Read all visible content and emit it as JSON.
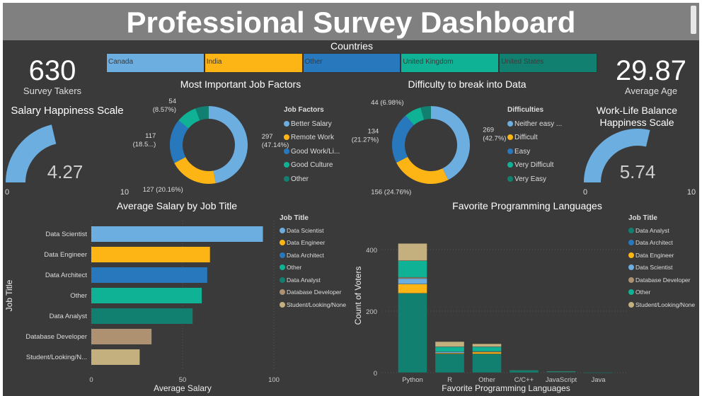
{
  "title": "Professional Survey Dashboard",
  "colors": {
    "c1": "#6caee0",
    "c2": "#fdb515",
    "c3": "#2878bd",
    "c4": "#0fb294",
    "c5": "#128070",
    "c6": "#ad9170",
    "c7": "#c4b07e"
  },
  "countries": {
    "title": "Countries",
    "items": [
      "Canada",
      "India",
      "Other",
      "United Kingdom",
      "United States"
    ]
  },
  "survey_takers": {
    "value": "630",
    "label": "Survey Takers"
  },
  "average_age": {
    "value": "29.87",
    "label": "Average Age"
  },
  "salary_gauge": {
    "title": "Salary Happiness Scale",
    "value": 4.27,
    "value_label": "4.27",
    "min": "0",
    "max": "10"
  },
  "worklife_gauge": {
    "title": "Work-Life Balance Happiness Scale",
    "title1": "Work-Life Balance",
    "title2": "Happiness Scale",
    "value": 5.74,
    "value_label": "5.74",
    "min": "0",
    "max": "10"
  },
  "chart_data": [
    {
      "type": "pie",
      "title": "Most Important Job Factors",
      "legend_title": "Job Factors",
      "categories": [
        "Better Salary",
        "Remote Work",
        "Good Work/Li...",
        "Good Culture",
        "Other"
      ],
      "values": [
        297,
        127,
        117,
        54,
        35
      ],
      "data_labels": [
        "297 (47.14%)",
        "127 (20.16%)",
        "117 (18.5...)",
        "54 (8.57%)",
        ""
      ]
    },
    {
      "type": "pie",
      "title": "Difficulty to break into Data",
      "legend_title": "Difficulties",
      "categories": [
        "Neither easy ...",
        "Difficult",
        "Easy",
        "Very Difficult",
        "Very Easy"
      ],
      "values": [
        269,
        156,
        134,
        44,
        27
      ],
      "data_labels": [
        "269 (42.7%)",
        "156 (24.76%)",
        "134 (21.27%)",
        "44 (6.98%)",
        ""
      ]
    },
    {
      "type": "bar",
      "orientation": "horizontal",
      "title": "Average Salary by Job Title",
      "xlabel": "Average Salary",
      "ylabel": "Job Title",
      "legend_title": "Job Title",
      "legend": [
        "Data Scientist",
        "Data Engineer",
        "Data Architect",
        "Other",
        "Data Analyst",
        "Database Developer",
        "Student/Looking/None"
      ],
      "categories": [
        "Data Scientist",
        "Data Engineer",
        "Data Architect",
        "Other",
        "Data Analyst",
        "Database Developer",
        "Student/Looking/N..."
      ],
      "values": [
        94,
        65,
        63.5,
        60.5,
        55.5,
        33,
        26.5
      ],
      "xticks": [
        "0",
        "50",
        "100"
      ],
      "xlim": [
        0,
        100
      ],
      "grid": true
    },
    {
      "type": "bar",
      "stacked": true,
      "title": "Favorite Programming Languages",
      "xlabel": "Favorite Programming Languages",
      "ylabel": "Count of Voters",
      "legend_title": "Job Title",
      "categories": [
        "Python",
        "R",
        "Other",
        "C/C++",
        "JavaScript",
        "Java"
      ],
      "yticks": [
        "0",
        "200",
        "400"
      ],
      "ylim": [
        0,
        420
      ],
      "grid": true,
      "series": [
        {
          "name": "Data Analyst",
          "values": [
            258,
            61,
            61,
            7,
            3,
            1
          ]
        },
        {
          "name": "Data Architect",
          "values": [
            0,
            0,
            0,
            0,
            0,
            0
          ]
        },
        {
          "name": "Data Engineer",
          "values": [
            30,
            3,
            6,
            0,
            0,
            0
          ]
        },
        {
          "name": "Data Scientist",
          "values": [
            18,
            4,
            0,
            0,
            0,
            0
          ]
        },
        {
          "name": "Database Developer",
          "values": [
            4,
            0,
            2,
            0,
            1,
            0
          ]
        },
        {
          "name": "Other",
          "values": [
            54,
            16,
            15,
            1,
            1,
            0
          ]
        },
        {
          "name": "Student/Looking/None",
          "values": [
            56,
            17,
            10,
            0,
            0,
            0
          ]
        }
      ]
    }
  ]
}
